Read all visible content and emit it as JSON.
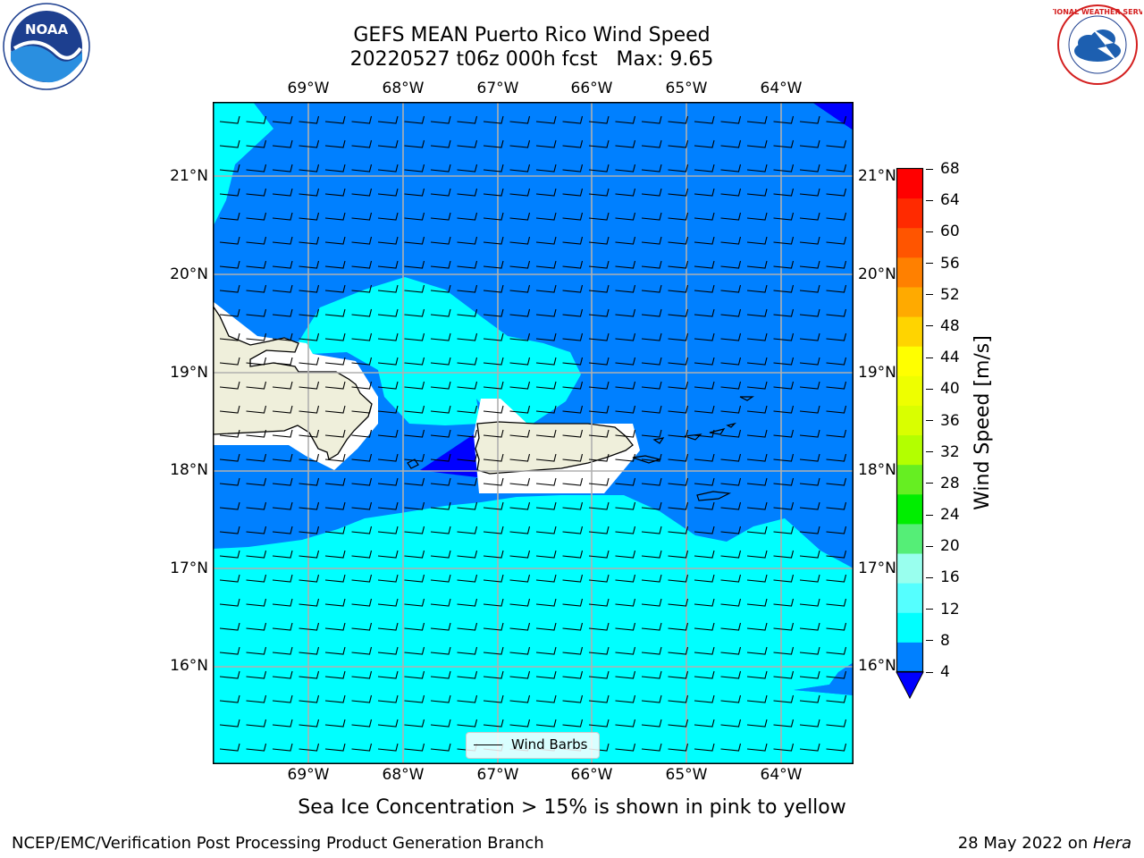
{
  "header": {
    "title_line1": "GEFS MEAN Puerto Rico Wind Speed",
    "title_line2": "20220527 t06z 000h fcst   Max: 9.65"
  },
  "logos": {
    "left": {
      "icon": "noaa-logo",
      "text": "NOAA"
    },
    "right": {
      "icon": "nws-logo",
      "ring_text": "NATIONAL WEATHER SERVICE"
    }
  },
  "map": {
    "lon_ticks": [
      "69°W",
      "68°W",
      "67°W",
      "66°W",
      "65°W",
      "64°W"
    ],
    "lat_ticks": [
      "21°N",
      "20°N",
      "19°N",
      "18°N",
      "17°N",
      "16°N"
    ],
    "legend_label": "Wind Barbs",
    "colors": {
      "below_4": "#0000ff",
      "4_8": "#0080ff",
      "8_12": "#00ffff",
      "land": "#efefdb"
    }
  },
  "colorbar": {
    "title": "Wind Speed [m/s]",
    "ticks": [
      "68",
      "64",
      "60",
      "56",
      "52",
      "48",
      "44",
      "40",
      "36",
      "32",
      "28",
      "24",
      "20",
      "16",
      "12",
      "8",
      "4"
    ],
    "colors_top_to_bottom": [
      "#ff0000",
      "#ff2a00",
      "#ff5500",
      "#ff8000",
      "#ffaa00",
      "#ffd400",
      "#ffff00",
      "#eeff00",
      "#d9ff00",
      "#b3ff00",
      "#66ee22",
      "#00ee00",
      "#55ee77",
      "#99ffee",
      "#55ffff",
      "#00ffff",
      "#0080ff"
    ],
    "extend_color": "#0000ff"
  },
  "subtitle": "Sea Ice Concentration > 15% is shown in pink to yellow",
  "footer": {
    "left": "NCEP/EMC/Verification Post Processing Product Generation Branch",
    "right_prefix": "28 May 2022 on ",
    "right_host": "Hera"
  }
}
